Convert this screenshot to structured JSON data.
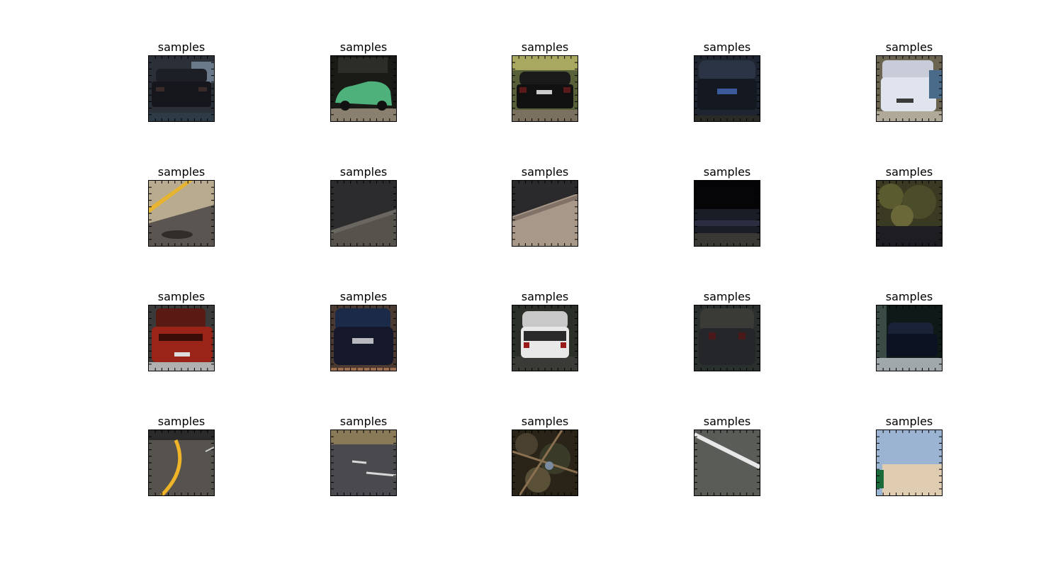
{
  "figure": {
    "panels": [
      {
        "title": "samples",
        "icon": "car-rear-icon"
      },
      {
        "title": "samples",
        "icon": "car-side-icon"
      },
      {
        "title": "samples",
        "icon": "car-rear-icon"
      },
      {
        "title": "samples",
        "icon": "car-rear-icon"
      },
      {
        "title": "samples",
        "icon": "car-rear-icon"
      },
      {
        "title": "samples",
        "icon": "road-icon"
      },
      {
        "title": "samples",
        "icon": "road-icon"
      },
      {
        "title": "samples",
        "icon": "road-icon"
      },
      {
        "title": "samples",
        "icon": "road-icon"
      },
      {
        "title": "samples",
        "icon": "foliage-icon"
      },
      {
        "title": "samples",
        "icon": "car-rear-icon"
      },
      {
        "title": "samples",
        "icon": "car-rear-icon"
      },
      {
        "title": "samples",
        "icon": "car-rear-icon"
      },
      {
        "title": "samples",
        "icon": "car-rear-icon"
      },
      {
        "title": "samples",
        "icon": "car-rear-icon"
      },
      {
        "title": "samples",
        "icon": "road-icon"
      },
      {
        "title": "samples",
        "icon": "road-icon"
      },
      {
        "title": "samples",
        "icon": "foliage-icon"
      },
      {
        "title": "samples",
        "icon": "road-icon"
      },
      {
        "title": "samples",
        "icon": "sky-icon"
      }
    ]
  }
}
